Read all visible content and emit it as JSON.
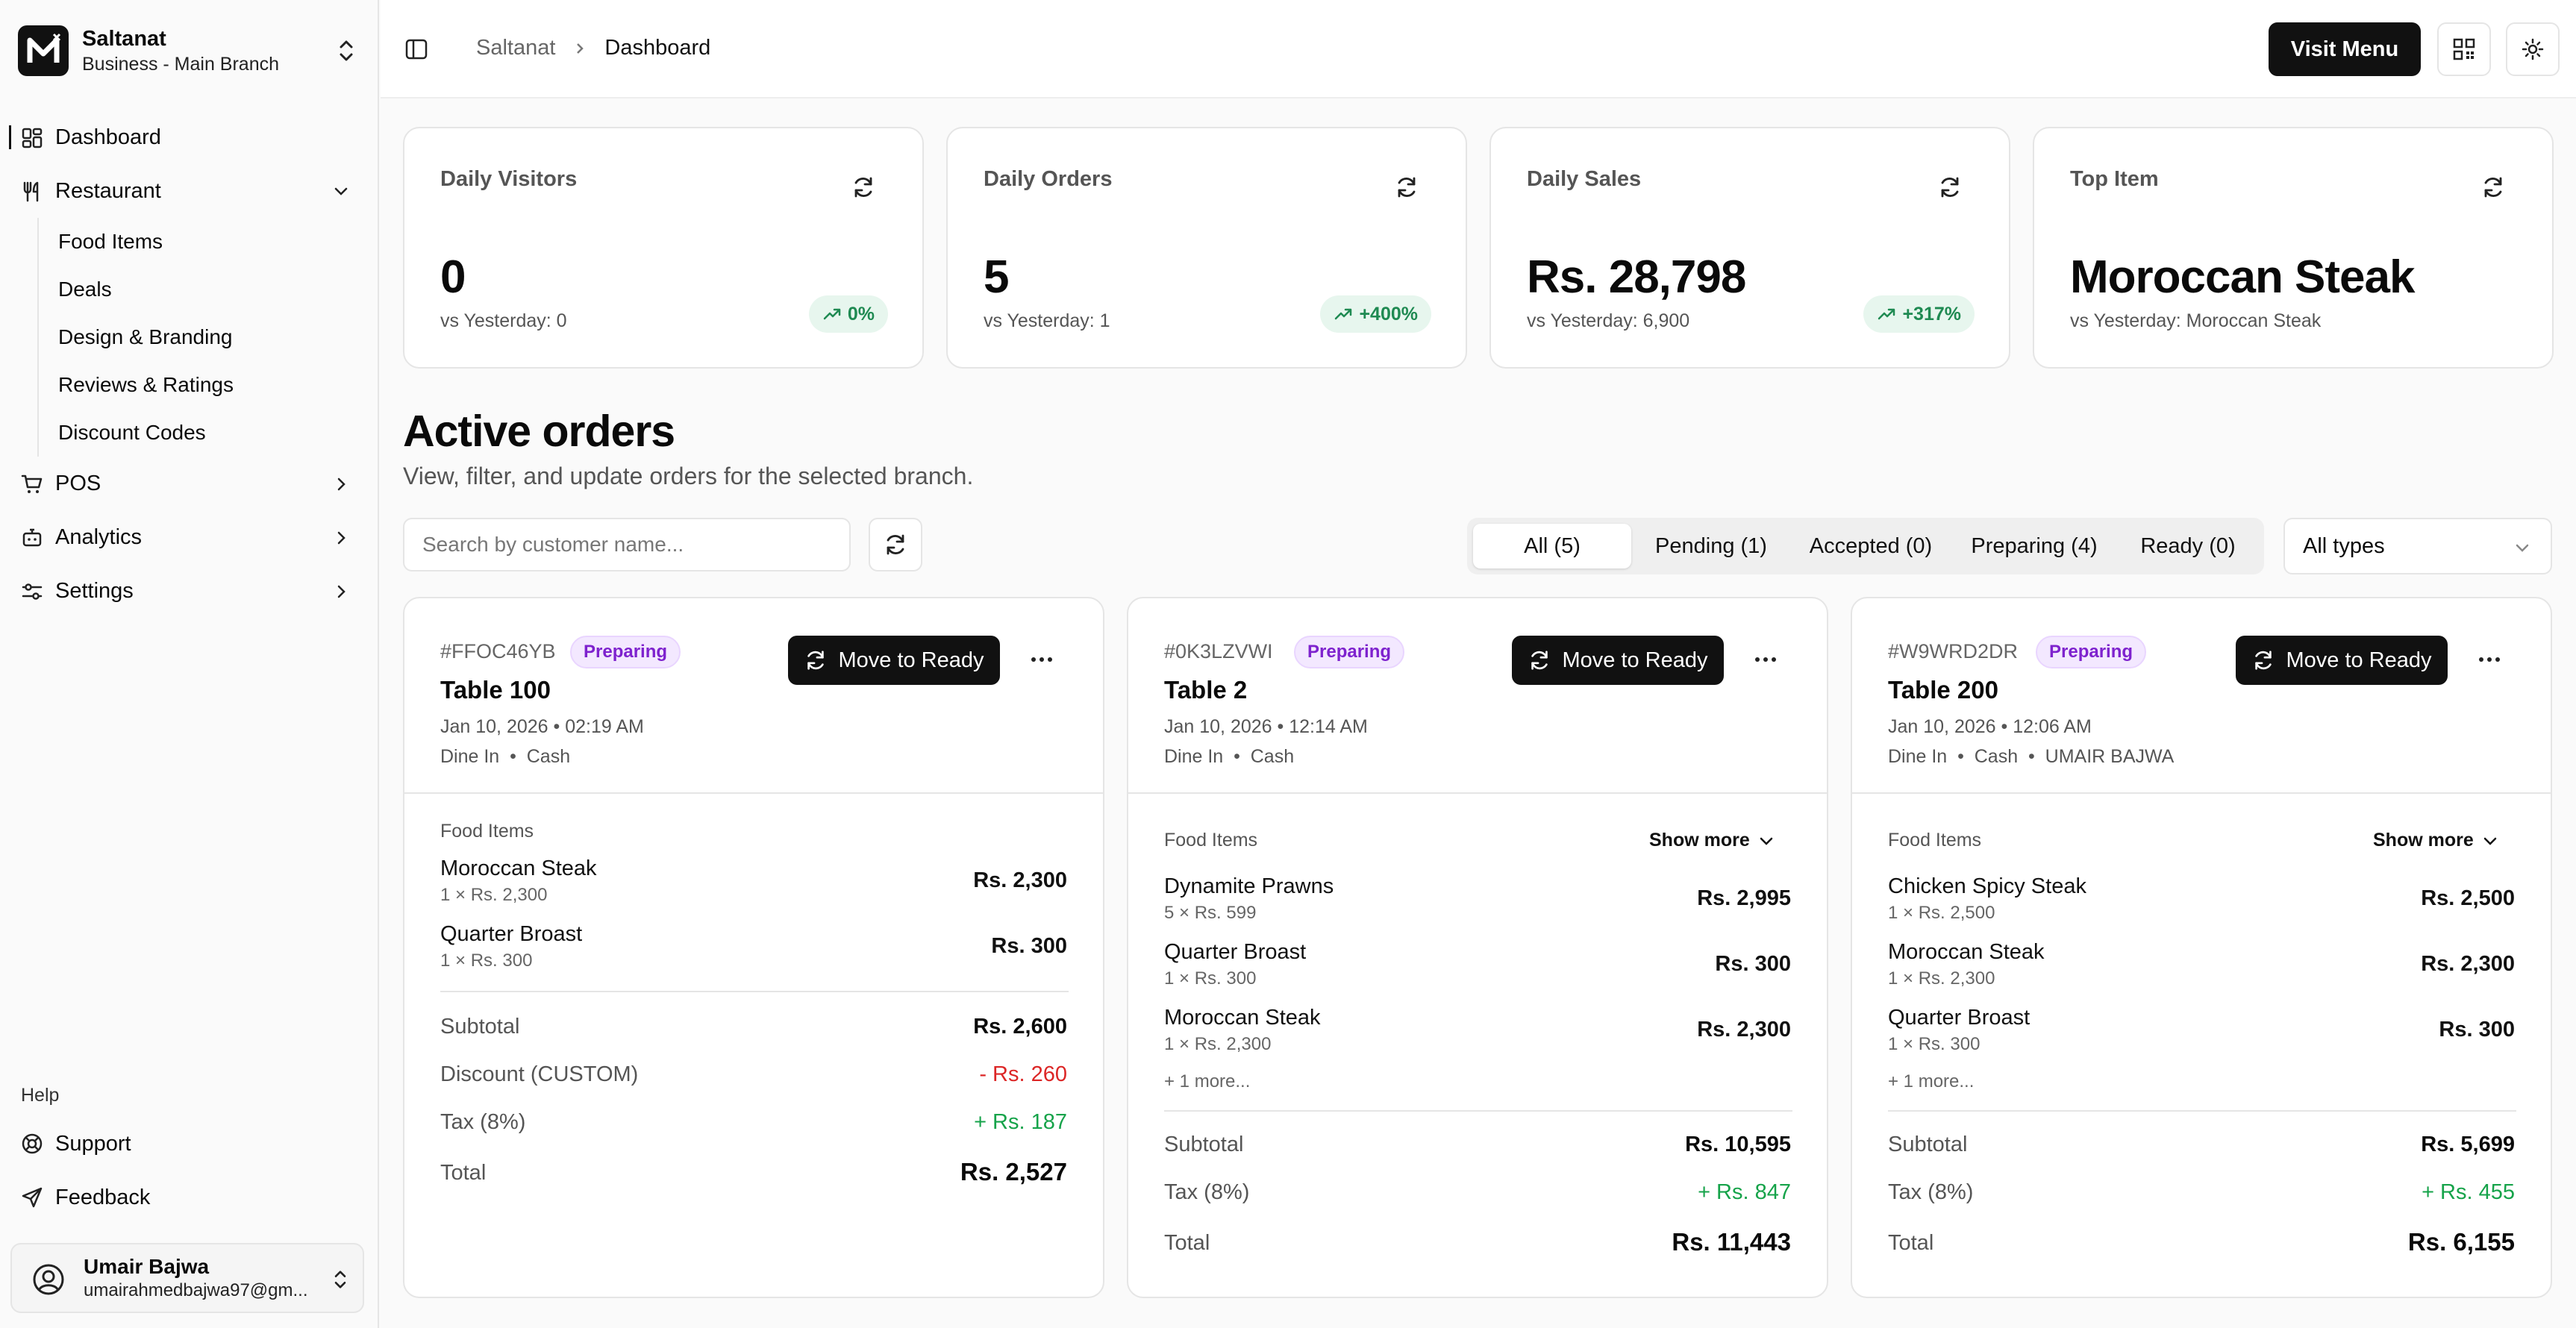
{
  "brand": {
    "name": "Saltanat",
    "branch": "Business - Main Branch"
  },
  "sidebar": {
    "items": [
      {
        "label": "Dashboard",
        "icon": "dashboard-icon"
      },
      {
        "label": "Restaurant",
        "icon": "utensils-icon"
      },
      {
        "label": "POS",
        "icon": "cart-icon"
      },
      {
        "label": "Analytics",
        "icon": "bot-icon"
      },
      {
        "label": "Settings",
        "icon": "sliders-icon"
      }
    ],
    "restaurant_sub": [
      "Food Items",
      "Deals",
      "Design & Branding",
      "Reviews & Ratings",
      "Discount Codes"
    ],
    "help_label": "Help",
    "help_items": [
      {
        "label": "Support",
        "icon": "lifebuoy-icon"
      },
      {
        "label": "Feedback",
        "icon": "send-icon"
      }
    ],
    "user": {
      "name": "Umair Bajwa",
      "email": "umairahmedbajwa97@gm..."
    }
  },
  "header": {
    "breadcrumb_root": "Saltanat",
    "breadcrumb_current": "Dashboard",
    "visit_menu": "Visit Menu"
  },
  "stats": [
    {
      "title": "Daily Visitors",
      "value": "0",
      "sub": "vs Yesterday: 0",
      "badge": "0%"
    },
    {
      "title": "Daily Orders",
      "value": "5",
      "sub": "vs Yesterday: 1",
      "badge": "+400%"
    },
    {
      "title": "Daily Sales",
      "value": "Rs. 28,798",
      "sub": "vs Yesterday: 6,900",
      "badge": "+317%"
    },
    {
      "title": "Top Item",
      "value": "Moroccan Steak",
      "sub": "vs Yesterday: Moroccan Steak",
      "badge": ""
    }
  ],
  "orders_section": {
    "title": "Active orders",
    "subtitle": "View, filter, and update orders for the selected branch.",
    "search_placeholder": "Search by customer name...",
    "tabs": [
      "All (5)",
      "Pending (1)",
      "Accepted (0)",
      "Preparing (4)",
      "Ready (0)"
    ],
    "type_select": "All types"
  },
  "orders": [
    {
      "id": "#FFOC46YB",
      "status": "Preparing",
      "table": "Table 100",
      "date": "Jan 10, 2026 • 02:19 AM",
      "meta": "Dine In  •  Cash",
      "action": "Move to Ready",
      "items_label": "Food Items",
      "show_more": "",
      "items": [
        {
          "name": "Moroccan Steak",
          "qty": "1 × Rs. 2,300",
          "price": "Rs. 2,300"
        },
        {
          "name": "Quarter Broast",
          "qty": "1 × Rs. 300",
          "price": "Rs. 300"
        }
      ],
      "more": "",
      "subtotal_label": "Subtotal",
      "subtotal": "Rs. 2,600",
      "discount_label": "Discount (CUSTOM)",
      "discount": "- Rs. 260",
      "tax_label": "Tax (8%)",
      "tax": "+ Rs. 187",
      "total_label": "Total",
      "total": "Rs. 2,527"
    },
    {
      "id": "#0K3LZVWI",
      "status": "Preparing",
      "table": "Table 2",
      "date": "Jan 10, 2026 • 12:14 AM",
      "meta": "Dine In  •  Cash",
      "action": "Move to Ready",
      "items_label": "Food Items",
      "show_more": "Show more",
      "items": [
        {
          "name": "Dynamite Prawns",
          "qty": "5 × Rs. 599",
          "price": "Rs. 2,995"
        },
        {
          "name": "Quarter Broast",
          "qty": "1 × Rs. 300",
          "price": "Rs. 300"
        },
        {
          "name": "Moroccan Steak",
          "qty": "1 × Rs. 2,300",
          "price": "Rs. 2,300"
        }
      ],
      "more": "+ 1 more...",
      "subtotal_label": "Subtotal",
      "subtotal": "Rs. 10,595",
      "tax_label": "Tax (8%)",
      "tax": "+ Rs. 847",
      "total_label": "Total",
      "total": "Rs. 11,443"
    },
    {
      "id": "#W9WRD2DR",
      "status": "Preparing",
      "table": "Table 200",
      "date": "Jan 10, 2026 • 12:06 AM",
      "meta": "Dine In  •  Cash  •  UMAIR BAJWA",
      "action": "Move to Ready",
      "items_label": "Food Items",
      "show_more": "Show more",
      "items": [
        {
          "name": "Chicken Spicy Steak",
          "qty": "1 × Rs. 2,500",
          "price": "Rs. 2,500"
        },
        {
          "name": "Moroccan Steak",
          "qty": "1 × Rs. 2,300",
          "price": "Rs. 2,300"
        },
        {
          "name": "Quarter Broast",
          "qty": "1 × Rs. 300",
          "price": "Rs. 300"
        }
      ],
      "more": "+ 1 more...",
      "subtotal_label": "Subtotal",
      "subtotal": "Rs. 5,699",
      "tax_label": "Tax (8%)",
      "tax": "+ Rs. 455",
      "total_label": "Total",
      "total": "Rs. 6,155"
    }
  ],
  "colors": {
    "accent": "#111111",
    "badge_green": "#1f8a52",
    "status_purple": "#7e22ce",
    "discount_red": "#dc2626",
    "tax_green": "#16a34a"
  }
}
